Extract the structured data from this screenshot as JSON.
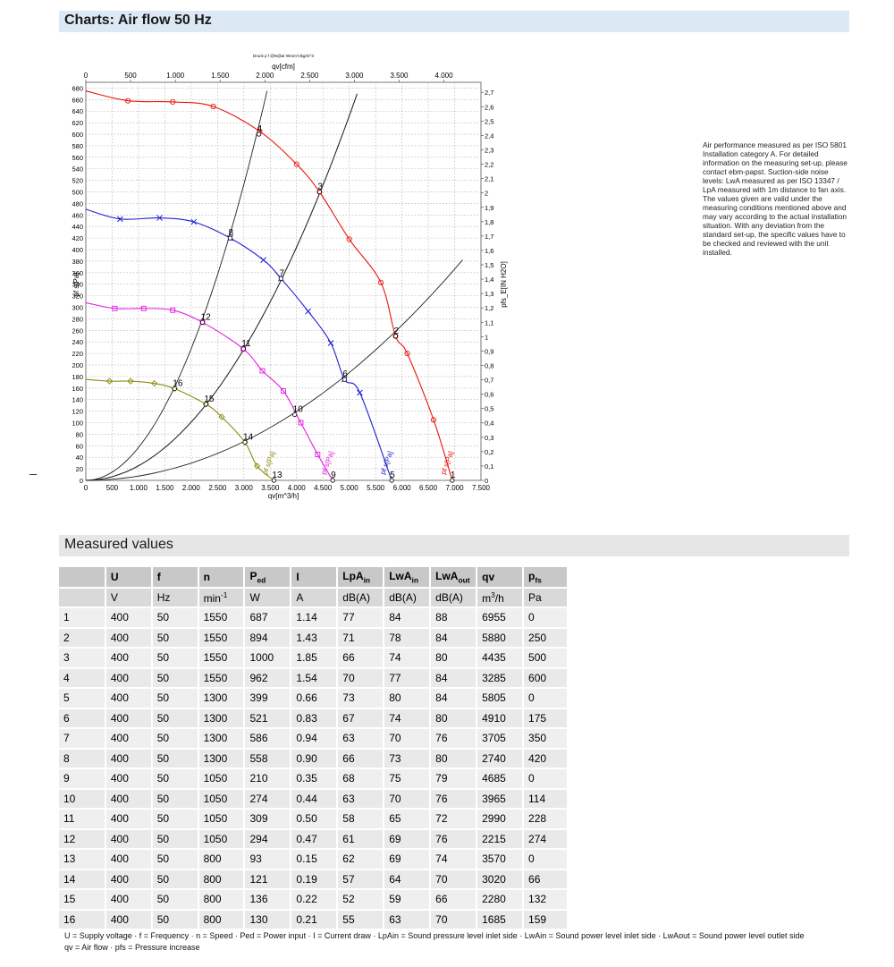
{
  "header": {
    "title": "Charts: Air flow 50 Hz"
  },
  "note_text": "Air performance measured as per ISO 5801 Installation category A. For detailed information on the measuring set-up, please contact ebm-papst. Suction-side noise levels: LwA measured as per ISO 13347 / LpA measured with 1m distance to fan axis. The values given are valid under the measuring conditions mentioned above and may vary according to the actual installation situation. With any deviation from the standard set-up, the specific values have to be checked and reviewed with the unit installed.",
  "chart_data": {
    "type": "line",
    "title": "Druck p f @N@ar Wrom?Jkg/m^3",
    "xlabel": "qv[m^3/h]",
    "x2label": "qv[cfm]",
    "ylabel": "pf s[Pa]",
    "y2label": "pfs_E[IN H2O]",
    "xlim": [
      0,
      7500
    ],
    "ylim": [
      0,
      690
    ],
    "x2lim": [
      0,
      4414
    ],
    "y2lim": [
      0,
      2.77
    ],
    "x_ticks": [
      "0",
      "500",
      "1.000",
      "1.500",
      "2.000",
      "2.500",
      "3.000",
      "3.500",
      "4.000",
      "4.500",
      "5.000",
      "5.500",
      "6.000",
      "6.500",
      "7.000",
      "7.500"
    ],
    "y_ticks": [
      "0",
      "20",
      "40",
      "60",
      "80",
      "100",
      "120",
      "140",
      "160",
      "180",
      "200",
      "220",
      "240",
      "260",
      "280",
      "300",
      "320",
      "340",
      "360",
      "380",
      "400",
      "420",
      "440",
      "460",
      "480",
      "500",
      "520",
      "540",
      "560",
      "580",
      "600",
      "620",
      "640",
      "660",
      "680"
    ],
    "x2_ticks": [
      "0",
      "500",
      "1.000",
      "1.500",
      "2.000",
      "2.500",
      "3.000",
      "3.500",
      "4.000"
    ],
    "y2_ticks": [
      "0",
      "0,1",
      "0,2",
      "0,3",
      "0,4",
      "0,5",
      "0,6",
      "0,7",
      "0,8",
      "0,9",
      "1",
      "1,1",
      "1,2",
      "1,3",
      "1,4",
      "1,5",
      "1,6",
      "1,7",
      "1,8",
      "1,9",
      "2",
      "2,1",
      "2,2",
      "2,3",
      "2,4",
      "2,5",
      "2,6",
      "2,7"
    ],
    "grid": true,
    "series": [
      {
        "name": "pf s[Pa]",
        "label_text": "pf s[Pa]",
        "color": "#e8140c",
        "marker": "circle",
        "x": [
          0,
          800,
          1650,
          2420,
          3300,
          4000,
          4435,
          5000,
          5600,
          5880,
          6100,
          6600,
          6955
        ],
        "y": [
          675,
          658,
          656,
          648,
          605,
          548,
          500,
          418,
          343,
          250,
          220,
          105,
          0
        ]
      },
      {
        "name": "pf s[Pa]",
        "label_text": "pf s[Pa]",
        "color": "#1f1fd2",
        "marker": "x",
        "x": [
          0,
          650,
          1400,
          2050,
          2740,
          3370,
          3705,
          4220,
          4650,
          4910,
          5200,
          5805
        ],
        "y": [
          470,
          453,
          455,
          448,
          420,
          382,
          350,
          293,
          238,
          175,
          152,
          0
        ]
      },
      {
        "name": "pf s[Pa]",
        "label_text": "pf s[Pa]",
        "color": "#e020e0",
        "marker": "square",
        "x": [
          0,
          550,
          1100,
          1650,
          2215,
          2990,
          3350,
          3750,
          4080,
          4400,
          4685
        ],
        "y": [
          308,
          298,
          298,
          295,
          274,
          228,
          190,
          155,
          100,
          45,
          0
        ]
      },
      {
        "name": "",
        "label_text": "pf s[Pa]",
        "color": "#8c8c10",
        "marker": "diamond",
        "x": [
          0,
          450,
          850,
          1300,
          1685,
          2280,
          2580,
          3020,
          3250,
          3570
        ],
        "y": [
          175,
          172,
          172,
          168,
          159,
          132,
          110,
          66,
          25,
          0
        ]
      }
    ],
    "system_curves": [
      {
        "x": [
          0,
          7150
        ],
        "y": [
          0,
          382
        ]
      },
      {
        "x": [
          0,
          5150
        ],
        "y": [
          0,
          670
        ]
      },
      {
        "x": [
          0,
          5150
        ],
        "y": [
          0,
          670
        ]
      },
      {
        "x": [
          0,
          3440
        ],
        "y": [
          0,
          675
        ]
      }
    ],
    "operating_points": [
      {
        "label": "1",
        "x": 6955,
        "y": 0
      },
      {
        "label": "2",
        "x": 5880,
        "y": 250
      },
      {
        "label": "3",
        "x": 4435,
        "y": 500
      },
      {
        "label": "4",
        "x": 3285,
        "y": 600
      },
      {
        "label": "5",
        "x": 5805,
        "y": 0
      },
      {
        "label": "6",
        "x": 4910,
        "y": 175
      },
      {
        "label": "7",
        "x": 3705,
        "y": 350
      },
      {
        "label": "8",
        "x": 2740,
        "y": 420
      },
      {
        "label": "9",
        "x": 4685,
        "y": 0
      },
      {
        "label": "10",
        "x": 3965,
        "y": 114
      },
      {
        "label": "11",
        "x": 2990,
        "y": 228
      },
      {
        "label": "12",
        "x": 2215,
        "y": 274
      },
      {
        "label": "13",
        "x": 3570,
        "y": 0
      },
      {
        "label": "14",
        "x": 3020,
        "y": 66
      },
      {
        "label": "15",
        "x": 2280,
        "y": 132
      },
      {
        "label": "16",
        "x": 1685,
        "y": 159
      }
    ]
  },
  "measured": {
    "title": "Measured values",
    "headers": [
      {
        "main": "",
        "sub": ""
      },
      {
        "main": "U",
        "sub": ""
      },
      {
        "main": "f",
        "sub": ""
      },
      {
        "main": "n",
        "sub": ""
      },
      {
        "main": "P",
        "sub": "ed"
      },
      {
        "main": "I",
        "sub": ""
      },
      {
        "main": "LpA",
        "sub": "in"
      },
      {
        "main": "LwA",
        "sub": "in"
      },
      {
        "main": "LwA",
        "sub": "out"
      },
      {
        "main": "qv",
        "sub": ""
      },
      {
        "main": "p",
        "sub": "fs"
      }
    ],
    "units": [
      "",
      "V",
      "Hz",
      "min-1",
      "W",
      "A",
      "dB(A)",
      "dB(A)",
      "dB(A)",
      "m3/h",
      "Pa"
    ],
    "rows": [
      [
        "1",
        "400",
        "50",
        "1550",
        "687",
        "1.14",
        "77",
        "84",
        "88",
        "6955",
        "0"
      ],
      [
        "2",
        "400",
        "50",
        "1550",
        "894",
        "1.43",
        "71",
        "78",
        "84",
        "5880",
        "250"
      ],
      [
        "3",
        "400",
        "50",
        "1550",
        "1000",
        "1.85",
        "66",
        "74",
        "80",
        "4435",
        "500"
      ],
      [
        "4",
        "400",
        "50",
        "1550",
        "962",
        "1.54",
        "70",
        "77",
        "84",
        "3285",
        "600"
      ],
      [
        "5",
        "400",
        "50",
        "1300",
        "399",
        "0.66",
        "73",
        "80",
        "84",
        "5805",
        "0"
      ],
      [
        "6",
        "400",
        "50",
        "1300",
        "521",
        "0.83",
        "67",
        "74",
        "80",
        "4910",
        "175"
      ],
      [
        "7",
        "400",
        "50",
        "1300",
        "586",
        "0.94",
        "63",
        "70",
        "76",
        "3705",
        "350"
      ],
      [
        "8",
        "400",
        "50",
        "1300",
        "558",
        "0.90",
        "66",
        "73",
        "80",
        "2740",
        "420"
      ],
      [
        "9",
        "400",
        "50",
        "1050",
        "210",
        "0.35",
        "68",
        "75",
        "79",
        "4685",
        "0"
      ],
      [
        "10",
        "400",
        "50",
        "1050",
        "274",
        "0.44",
        "63",
        "70",
        "76",
        "3965",
        "114"
      ],
      [
        "11",
        "400",
        "50",
        "1050",
        "309",
        "0.50",
        "58",
        "65",
        "72",
        "2990",
        "228"
      ],
      [
        "12",
        "400",
        "50",
        "1050",
        "294",
        "0.47",
        "61",
        "69",
        "76",
        "2215",
        "274"
      ],
      [
        "13",
        "400",
        "50",
        "800",
        "93",
        "0.15",
        "62",
        "69",
        "74",
        "3570",
        "0"
      ],
      [
        "14",
        "400",
        "50",
        "800",
        "121",
        "0.19",
        "57",
        "64",
        "70",
        "3020",
        "66"
      ],
      [
        "15",
        "400",
        "50",
        "800",
        "136",
        "0.22",
        "52",
        "59",
        "66",
        "2280",
        "132"
      ],
      [
        "16",
        "400",
        "50",
        "800",
        "130",
        "0.21",
        "55",
        "63",
        "70",
        "1685",
        "159"
      ]
    ]
  },
  "legend": {
    "line1": "U = Supply voltage · f = Frequency · n = Speed · Ped = Power input · I = Current draw · LpAin = Sound pressure level inlet side · LwAin = Sound power level inlet side · LwAout = Sound power level outlet side",
    "line2": "qv = Air flow · pfs = Pressure increase"
  }
}
